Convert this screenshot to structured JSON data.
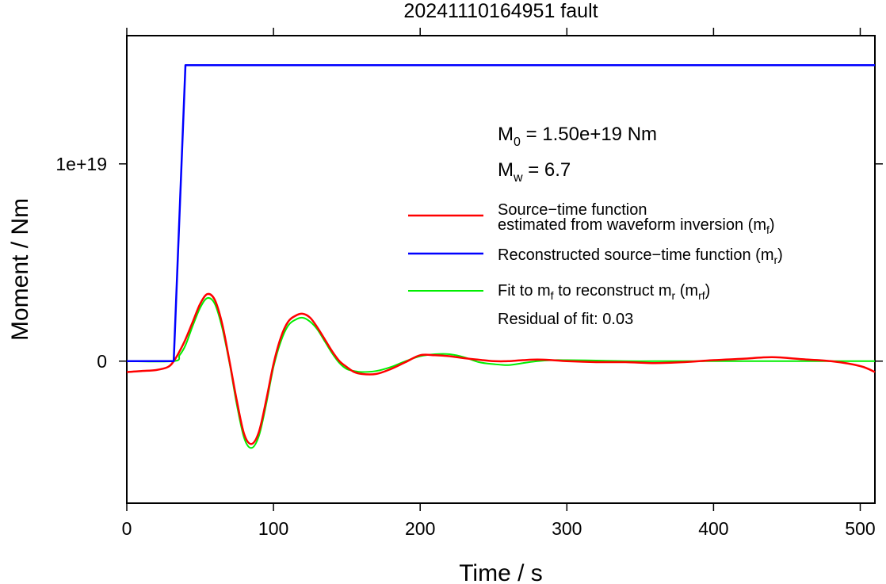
{
  "chart_data": {
    "type": "line",
    "title": "20241110164951 fault",
    "xlabel": "Time / s",
    "ylabel": "Moment / Nm",
    "xlim": [
      0,
      510
    ],
    "ylim": [
      -7.2e+18,
      1.65e+19
    ],
    "x_ticks": [
      0,
      100,
      200,
      300,
      400,
      500
    ],
    "x_tick_labels": [
      "0",
      "100",
      "200",
      "300",
      "400",
      "500"
    ],
    "y_ticks": [
      0,
      1e+19
    ],
    "y_tick_labels": [
      "0",
      "1e+19"
    ],
    "grid": false,
    "legend_position": "right",
    "annotations": {
      "m0_prefix": "M",
      "m0_sub": "0",
      "m0_value": " = 1.50e+19 Nm",
      "mw_prefix": "M",
      "mw_sub": "w",
      "mw_value": " = 6.7",
      "residual": "Residual of fit: 0.03"
    },
    "legend": [
      {
        "color": "#ff0000",
        "line1": "Source−time function",
        "line2_text": "estimated from waveform inversion (m",
        "line2_sub": "f",
        "line2_end": ")"
      },
      {
        "color": "#0000ff",
        "text": "Reconstructed source−time function (m",
        "sub": "r",
        "end": ")"
      },
      {
        "color": "#00ee00",
        "t1": "Fit to m",
        "s1": "f",
        "t2": " to reconstruct m",
        "s2": "r",
        "t3": " (m",
        "s3": "rf",
        "t4": ")"
      }
    ],
    "series": [
      {
        "name": "Source−time function estimated from waveform inversion (mf)",
        "color": "#ff0000",
        "x": [
          0,
          10,
          20,
          28,
          32,
          36,
          40,
          45,
          50,
          55,
          60,
          65,
          70,
          75,
          80,
          85,
          90,
          95,
          100,
          105,
          110,
          115,
          120,
          125,
          130,
          135,
          140,
          145,
          150,
          155,
          160,
          170,
          180,
          190,
          200,
          210,
          220,
          230,
          240,
          250,
          260,
          270,
          280,
          290,
          300,
          320,
          340,
          360,
          380,
          400,
          420,
          440,
          460,
          480,
          500,
          510
        ],
        "y": [
          -5.5e+17,
          -5e+17,
          -4.5e+17,
          -3e+17,
          0,
          5e+17,
          1.1e+18,
          2e+18,
          2.9e+18,
          3.4e+18,
          3.1e+18,
          1.9e+18,
          0,
          -2e+18,
          -3.7e+18,
          -4.2e+18,
          -3.6e+18,
          -2e+18,
          -1.5e+17,
          1.2e+18,
          2e+18,
          2.3e+18,
          2.4e+18,
          2.2e+18,
          1.7e+18,
          1.1e+18,
          5e+17,
          0,
          -3e+17,
          -5.5e+17,
          -6.5e+17,
          -6.5e+17,
          -4e+17,
          -5e+16,
          3e+17,
          3e+17,
          2.5e+17,
          1.5e+17,
          7e+16,
          0,
          0,
          5e+16,
          8e+16,
          5e+16,
          0,
          -5e+16,
          -5e+16,
          -1e+17,
          -5e+16,
          5e+16,
          1.2e+17,
          2e+17,
          1e+17,
          0,
          -2.5e+17,
          -5.5e+17
        ]
      },
      {
        "name": "Reconstructed source−time function (mr)",
        "color": "#0000ff",
        "x": [
          0,
          32,
          40,
          510
        ],
        "y": [
          0,
          0,
          1.5e+19,
          1.5e+19
        ]
      },
      {
        "name": "Fit to mf to reconstruct mr (mrf)",
        "color": "#00ee00",
        "x": [
          0,
          32,
          36,
          40,
          45,
          50,
          55,
          60,
          65,
          70,
          75,
          80,
          85,
          90,
          95,
          100,
          105,
          110,
          115,
          120,
          125,
          130,
          135,
          140,
          145,
          150,
          155,
          160,
          170,
          180,
          190,
          200,
          210,
          220,
          230,
          240,
          250,
          260,
          270,
          280,
          290,
          300,
          320,
          340,
          360,
          380,
          400,
          420,
          440,
          460,
          480,
          500,
          510
        ],
        "y": [
          0,
          0,
          3e+17,
          8e+17,
          1.8e+18,
          2.7e+18,
          3.2e+18,
          2.9e+18,
          1.7e+18,
          -1e+17,
          -2.2e+18,
          -3.9e+18,
          -4.4e+18,
          -3.8e+18,
          -2.2e+18,
          -3e+17,
          1e+18,
          1.8e+18,
          2.1e+18,
          2.2e+18,
          2e+18,
          1.6e+18,
          1e+18,
          4e+17,
          -1e+17,
          -4e+17,
          -5e+17,
          -5.5e+17,
          -5e+17,
          -3e+17,
          0,
          2.5e+17,
          3.5e+17,
          3.5e+17,
          2e+17,
          -5e+16,
          -1.5e+17,
          -2e+17,
          -1e+17,
          0,
          5e+16,
          5e+16,
          3e+16,
          0,
          0,
          0,
          0,
          0,
          0,
          0,
          0,
          0,
          0
        ]
      }
    ]
  }
}
